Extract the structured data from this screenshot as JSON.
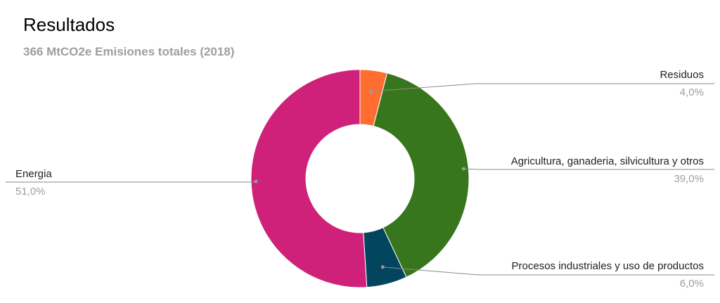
{
  "chart_data": {
    "type": "pie",
    "variant": "donut",
    "title": "Resultados",
    "subtitle": "366 MtCO2e Emisiones totales (2018)",
    "categories": [
      "Residuos",
      "Agricultura, ganaderia, silvicultura y otros",
      "Procesos industriales y uso de productos",
      "Energia"
    ],
    "values": [
      4.0,
      39.0,
      6.0,
      51.0
    ],
    "value_labels": [
      "4,0%",
      "39,0%",
      "6,0%",
      "51,0%"
    ],
    "colors": [
      "#ff6d31",
      "#38761d",
      "#03455e",
      "#cf217a"
    ],
    "legend": "none",
    "data_labels": "outside with leader lines"
  }
}
